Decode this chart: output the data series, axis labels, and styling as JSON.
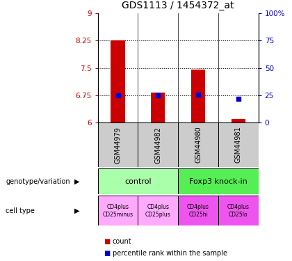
{
  "title": "GDS1113 / 1454372_at",
  "samples": [
    "GSM44979",
    "GSM44982",
    "GSM44980",
    "GSM44981"
  ],
  "bar_values": [
    8.25,
    6.82,
    7.45,
    6.1
  ],
  "bar_base": 6.0,
  "blue_marker_values": [
    6.75,
    6.75,
    6.76,
    6.65
  ],
  "bar_color": "#cc0000",
  "blue_color": "#0000cc",
  "ylim_left": [
    6,
    9
  ],
  "ylim_right": [
    0,
    100
  ],
  "yticks_left": [
    6,
    6.75,
    7.5,
    8.25,
    9
  ],
  "yticks_right": [
    0,
    25,
    50,
    75,
    100
  ],
  "ytick_labels_left": [
    "6",
    "6.75",
    "7.5",
    "8.25",
    "9"
  ],
  "ytick_labels_right": [
    "0",
    "25",
    "50",
    "75",
    "100%"
  ],
  "hlines": [
    6.75,
    7.5,
    8.25
  ],
  "geno_colors": [
    "#aaffaa",
    "#55ee55"
  ],
  "geno_labels": [
    "control",
    "Foxp3 knock-in"
  ],
  "cell_colors": [
    "#ffaaff",
    "#ffaaff",
    "#ee55ee",
    "#ee55ee"
  ],
  "cell_labels": [
    "CD4plus\nCD25minus",
    "CD4plus\nCD25plus",
    "CD4plus\nCD25hi",
    "CD4plus\nCD25lo"
  ],
  "gray_color": "#cccccc",
  "left_label_geno": "genotype/variation",
  "left_label_cell": "cell type",
  "legend_count_label": "count",
  "legend_pct_label": "percentile rank within the sample"
}
